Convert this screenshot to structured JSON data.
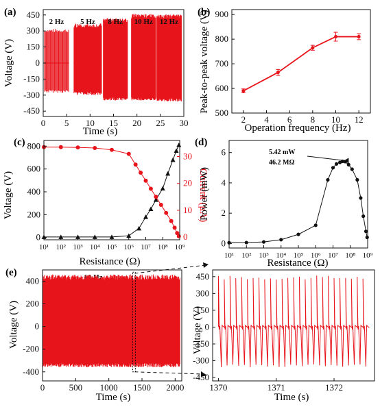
{
  "colors": {
    "red": "#e8141c",
    "black": "#111111"
  },
  "chart_data": [
    {
      "id": "a",
      "panel_label": "(a)",
      "type": "line",
      "xlabel": "Time (s)",
      "ylabel": "Voltage (V)",
      "xlim": [
        0,
        30
      ],
      "ylim": [
        -500,
        500
      ],
      "xticks": [
        0,
        5,
        10,
        15,
        20,
        25,
        30
      ],
      "yticks": [
        -450,
        -300,
        -150,
        0,
        150,
        300,
        450
      ],
      "annotations": [
        "2 Hz",
        "5 Hz",
        "8 Hz",
        "10 Hz",
        "12 Hz"
      ],
      "segments": [
        {
          "label": "2 Hz",
          "frequency_hz": 2,
          "t_start": 0.2,
          "t_end": 5.5,
          "v_max": 320,
          "v_min": -280
        },
        {
          "label": "5 Hz",
          "frequency_hz": 5,
          "t_start": 6.5,
          "t_end": 12.5,
          "v_max": 370,
          "v_min": -300
        },
        {
          "label": "8 Hz",
          "frequency_hz": 8,
          "t_start": 12.8,
          "t_end": 18.0,
          "v_max": 420,
          "v_min": -350
        },
        {
          "label": "10 Hz",
          "frequency_hz": 10,
          "t_start": 18.8,
          "t_end": 24.0,
          "v_max": 460,
          "v_min": -350
        },
        {
          "label": "12 Hz",
          "frequency_hz": 12,
          "t_start": 24.2,
          "t_end": 29.5,
          "v_max": 455,
          "v_min": -360
        }
      ]
    },
    {
      "id": "b",
      "panel_label": "(b)",
      "type": "line",
      "xlabel": "Operation frequency (Hz)",
      "ylabel": "Peak-to-peak voltage (V)",
      "xlim": [
        1,
        13
      ],
      "ylim": [
        500,
        920
      ],
      "xticks": [
        2,
        4,
        6,
        8,
        10,
        12
      ],
      "yticks": [
        500,
        600,
        700,
        800,
        900
      ],
      "x": [
        2,
        5,
        8,
        10,
        12
      ],
      "y": [
        590,
        665,
        765,
        810,
        810
      ],
      "err": [
        8,
        12,
        10,
        18,
        12
      ]
    },
    {
      "id": "c",
      "panel_label": "(c)",
      "type": "line",
      "xlabel": "Resistance (Ω)",
      "ylabel": "Voltage (V)",
      "y2label": "Current (μA)",
      "xscale": "log",
      "xlim": [
        1,
        9
      ],
      "ylim": [
        -20,
        850
      ],
      "y2lim": [
        -1,
        36
      ],
      "xticks": [
        "10¹",
        "10²",
        "10³",
        "10⁴",
        "10⁵",
        "10⁶",
        "10⁷",
        "10⁸",
        "10⁹"
      ],
      "yticks": [
        0,
        200,
        400,
        600,
        800
      ],
      "y2ticks": [
        0,
        10,
        20,
        30
      ],
      "series": [
        {
          "axis": "left",
          "color": "#111111",
          "marker": "triangle",
          "log10_x": [
            1,
            2,
            3,
            4,
            5,
            6,
            6.6,
            7,
            7.3,
            7.6,
            8,
            8.3,
            8.6,
            8.8,
            8.95
          ],
          "y": [
            5,
            5,
            5,
            5,
            5,
            15,
            80,
            180,
            250,
            330,
            430,
            560,
            680,
            760,
            810
          ]
        },
        {
          "axis": "right",
          "color": "#e8141c",
          "marker": "circle",
          "log10_x": [
            1,
            2,
            3,
            4,
            5,
            6,
            6.4,
            6.7,
            7,
            7.3,
            7.6,
            7.9,
            8.2,
            8.5,
            8.7,
            8.85,
            8.95
          ],
          "y": [
            33.5,
            33.5,
            33.4,
            33.2,
            32.5,
            31,
            27,
            24,
            21,
            18,
            15,
            12,
            9,
            6,
            3.5,
            1.5,
            0.3
          ]
        }
      ]
    },
    {
      "id": "d",
      "panel_label": "(d)",
      "type": "line",
      "xlabel": "Resistance (Ω)",
      "ylabel": "Power (mW)",
      "xscale": "log",
      "xlim": [
        1,
        9
      ],
      "ylim": [
        -0.3,
        6.8
      ],
      "xticks": [
        "10¹",
        "10²",
        "10³",
        "10⁴",
        "10⁵",
        "10⁶",
        "10⁷",
        "10⁸",
        "10⁹"
      ],
      "yticks": [
        0,
        2,
        4,
        6
      ],
      "log10_x": [
        1,
        2,
        3,
        4,
        5,
        6,
        6.7,
        7,
        7.2,
        7.4,
        7.55,
        7.7,
        7.9,
        8.1,
        8.4,
        8.6,
        8.75,
        8.9,
        8.97
      ],
      "y": [
        0.05,
        0.06,
        0.1,
        0.25,
        0.6,
        1.2,
        4.2,
        5.0,
        5.25,
        5.35,
        5.42,
        5.4,
        5.2,
        4.9,
        4.2,
        3.0,
        1.8,
        0.8,
        0.4
      ],
      "annotations": [
        "5.42 mW",
        "46.2 MΩ"
      ]
    },
    {
      "id": "e",
      "panel_label": "(e)",
      "type": "line",
      "xlabel": "Time (s)",
      "ylabel": "Voltage (V)",
      "xlim": [
        0,
        2100
      ],
      "ylim": [
        -480,
        500
      ],
      "xticks": [
        0,
        500,
        1000,
        1500,
        2000
      ],
      "yticks": [
        -400,
        -200,
        0,
        200,
        400
      ],
      "annotations": [
        "10 Hz"
      ],
      "signal": {
        "t_start": 0,
        "t_end": 2100,
        "v_max": 460,
        "v_min": -360,
        "frequency_hz": 10
      },
      "zoom_window": [
        1370,
        1372.6
      ]
    },
    {
      "id": "e_zoom",
      "panel_label": "",
      "type": "line",
      "xlabel": "Time (s)",
      "ylabel": "Voltage (V)",
      "xlim": [
        1369.9,
        1372.7
      ],
      "ylim": [
        -480,
        510
      ],
      "xticks": [
        1370,
        1371,
        1372
      ],
      "yticks": [
        -450,
        -300,
        -150,
        0,
        150,
        300,
        450
      ],
      "signal": {
        "frequency_hz": 10,
        "v_max": 460,
        "v_min": -360
      }
    }
  ]
}
